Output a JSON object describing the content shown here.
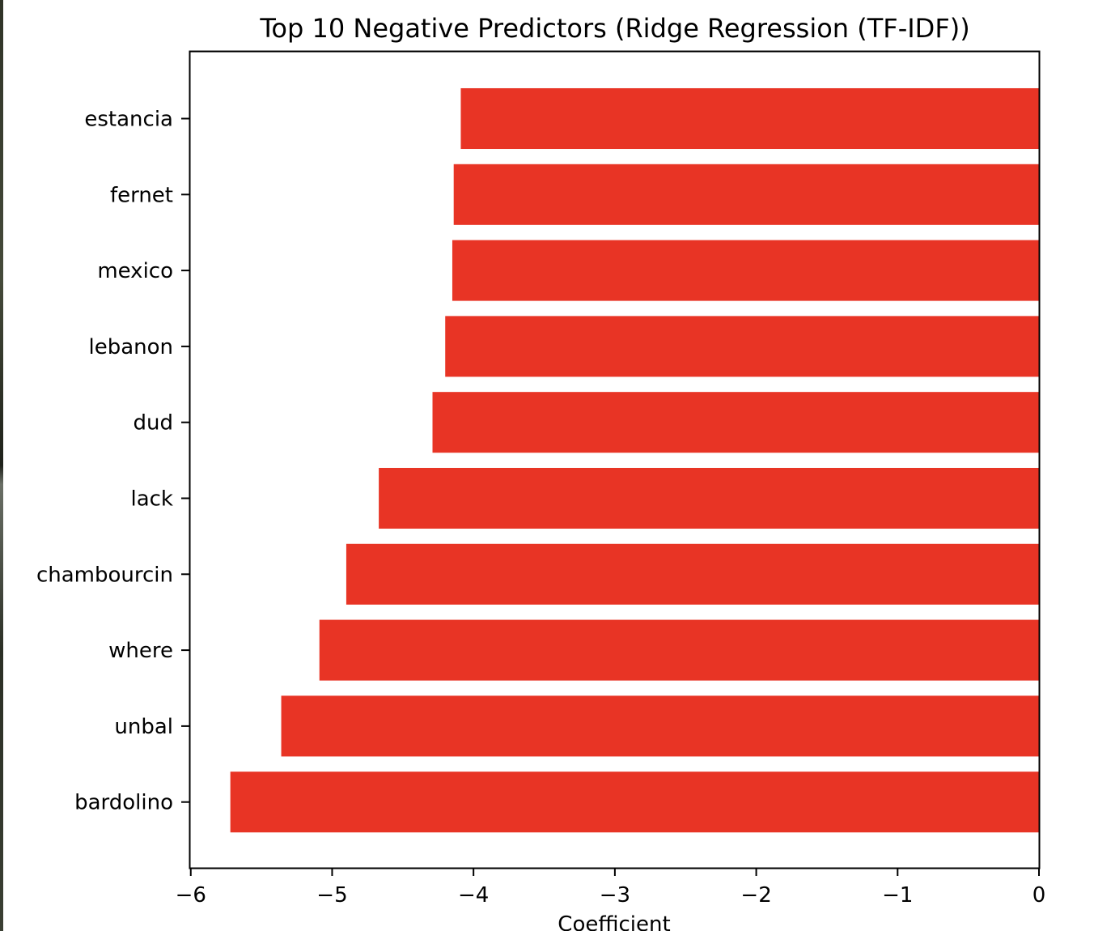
{
  "chart_data": {
    "type": "bar",
    "orientation": "horizontal",
    "title": "Top 10 Negative Predictors (Ridge Regression (TF-IDF))",
    "xlabel": "Coefficient",
    "ylabel": "",
    "categories": [
      "estancia",
      "fernet",
      "mexico",
      "lebanon",
      "dud",
      "lack",
      "chambourcin",
      "where",
      "unbal",
      "bardolino"
    ],
    "values": [
      -4.09,
      -4.14,
      -4.15,
      -4.2,
      -4.29,
      -4.67,
      -4.9,
      -5.09,
      -5.36,
      -5.72
    ],
    "xlim": [
      -6.01,
      0
    ],
    "xticks": [
      -6,
      -5,
      -4,
      -3,
      -2,
      -1,
      0
    ],
    "xtick_labels": [
      "−6",
      "−5",
      "−4",
      "−3",
      "−2",
      "−1",
      "0"
    ],
    "bar_color": "#e83425",
    "grid": false,
    "legend": "none"
  }
}
